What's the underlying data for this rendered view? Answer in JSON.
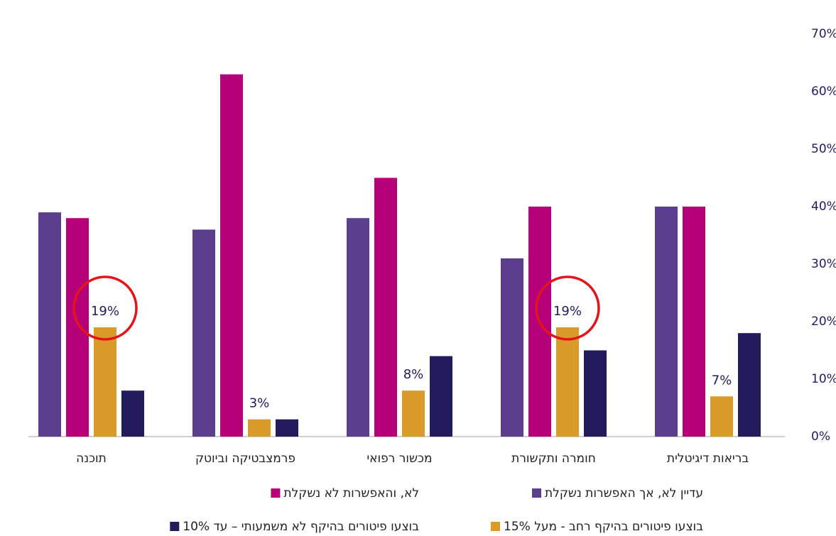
{
  "chart_data": {
    "type": "bar",
    "categories": [
      "בריאות דיגיטלית",
      "חומרה ותקשורת",
      "מכשור רפואי",
      "פרמצבטיקה וביוטק",
      "תוכנה"
    ],
    "series": [
      {
        "name": "עדיין לא, אך האפשרות נשקלת",
        "color": "#5b3f8c",
        "values": [
          40,
          31,
          38,
          36,
          39
        ]
      },
      {
        "name": "לא, והאפשרות לא נשקלת",
        "color": "#b5007a",
        "values": [
          40,
          40,
          45,
          63,
          38
        ]
      },
      {
        "name": "בוצעו פיטורים בהיקף רחב  - מעל 15%",
        "color": "#d99a29",
        "values": [
          7,
          19,
          8,
          3,
          19
        ],
        "value_labels": [
          "7%",
          "19%",
          "8%",
          "3%",
          "19%"
        ]
      },
      {
        "name": "בוצעו פיטורים בהיקף לא משמעותי – עד 10%",
        "color": "#221c5c",
        "values": [
          18,
          15,
          14,
          3,
          8
        ]
      }
    ],
    "ylim": [
      0,
      70
    ],
    "yticks": [
      {
        "value": 0,
        "label": "0%"
      },
      {
        "value": 10,
        "label": "10%"
      },
      {
        "value": 20,
        "label": "20%"
      },
      {
        "value": 30,
        "label": "30%"
      },
      {
        "value": 40,
        "label": "40%"
      },
      {
        "value": 50,
        "label": "50%"
      },
      {
        "value": 60,
        "label": "60%"
      },
      {
        "value": 70,
        "label": "70%"
      }
    ],
    "grid": false
  }
}
